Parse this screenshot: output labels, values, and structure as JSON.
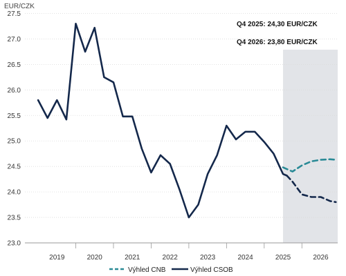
{
  "chart_data": {
    "type": "line",
    "ylabel": "EUR/CZK",
    "ylim": [
      23.0,
      27.5
    ],
    "y_ticks": [
      "27.5",
      "27.0",
      "26.5",
      "26.0",
      "25.5",
      "25.0",
      "24.5",
      "24.0",
      "23.5",
      "23.0"
    ],
    "x_categories": [
      "2019",
      "2020",
      "2021",
      "2022",
      "2023",
      "2024",
      "2025",
      "2026"
    ],
    "forecast_region": {
      "from_year": 2025.5,
      "to_year": 2027
    },
    "annotations": [
      "Q4 2025: 24,30 EUR/CZK",
      "Q4 2026: 23,80 EUR/CZK"
    ],
    "series": [
      {
        "name": "Výhled CSOB",
        "style": "solid",
        "color": "#14284b",
        "points": [
          [
            2019.0,
            25.8
          ],
          [
            2019.25,
            25.45
          ],
          [
            2019.5,
            25.8
          ],
          [
            2019.75,
            25.42
          ],
          [
            2020.0,
            27.3
          ],
          [
            2020.25,
            26.75
          ],
          [
            2020.5,
            27.22
          ],
          [
            2020.75,
            26.25
          ],
          [
            2021.0,
            26.15
          ],
          [
            2021.25,
            25.48
          ],
          [
            2021.5,
            25.48
          ],
          [
            2021.75,
            24.85
          ],
          [
            2022.0,
            24.38
          ],
          [
            2022.25,
            24.72
          ],
          [
            2022.5,
            24.55
          ],
          [
            2022.75,
            24.05
          ],
          [
            2023.0,
            23.5
          ],
          [
            2023.25,
            23.75
          ],
          [
            2023.5,
            24.35
          ],
          [
            2023.75,
            24.72
          ],
          [
            2024.0,
            25.3
          ],
          [
            2024.25,
            25.03
          ],
          [
            2024.5,
            25.18
          ],
          [
            2024.75,
            25.18
          ],
          [
            2025.0,
            24.98
          ],
          [
            2025.25,
            24.75
          ],
          [
            2025.5,
            24.35
          ],
          [
            2025.6,
            24.32
          ]
        ]
      },
      {
        "name": "Výhled CSOB forecast",
        "style": "dashed",
        "color": "#14284b",
        "points": [
          [
            2025.6,
            24.32
          ],
          [
            2025.75,
            24.2
          ],
          [
            2026.0,
            23.95
          ],
          [
            2026.25,
            23.9
          ],
          [
            2026.5,
            23.9
          ],
          [
            2026.75,
            23.82
          ],
          [
            2026.9,
            23.8
          ]
        ]
      },
      {
        "name": "Výhled CNB",
        "style": "dashed",
        "color": "#2a8a96",
        "points": [
          [
            2025.5,
            24.48
          ],
          [
            2025.75,
            24.4
          ],
          [
            2026.0,
            24.52
          ],
          [
            2026.25,
            24.6
          ],
          [
            2026.5,
            24.63
          ],
          [
            2026.75,
            24.64
          ],
          [
            2026.9,
            24.63
          ]
        ]
      }
    ],
    "legend": {
      "placement": "bottom",
      "items": [
        {
          "label": "Výhled CNB",
          "style": "dashed",
          "color": "#2a8a96"
        },
        {
          "label": "Výhled CSOB",
          "style": "solid",
          "color": "#14284b"
        }
      ]
    }
  }
}
